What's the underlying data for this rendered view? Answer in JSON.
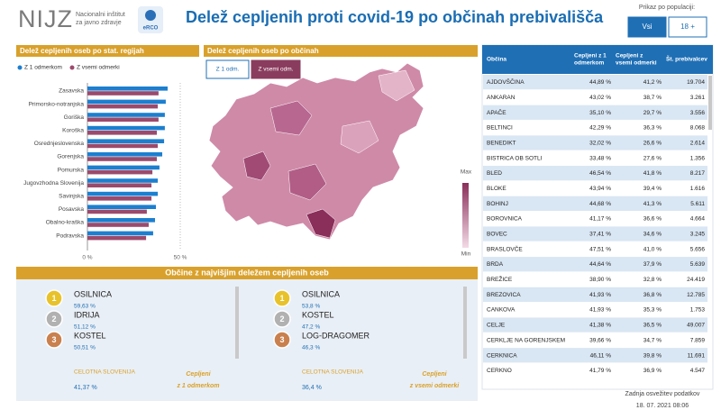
{
  "header": {
    "logo": "NIJZ",
    "logo_text": [
      "Nacionalni inštitut",
      "za javno zdravje"
    ],
    "badge": "eRCO",
    "title": "Delež cepljenih proti covid-19 po občinah prebivališča",
    "filter_label": "Prikaz po populaciji:",
    "buttons": [
      "Vsi",
      "18 +"
    ]
  },
  "chart_data": {
    "type": "hbar",
    "title": "Delež cepljenih oseb po stat. regijah",
    "categories": [
      "Zasavska",
      "Primorsko-notranjska",
      "Goriška",
      "Koroška",
      "Osrednjeslovenska",
      "Gorenjska",
      "Pomurska",
      "Jugovzhodna Slovenija",
      "Savinjska",
      "Posavska",
      "Obalno-kraška",
      "Podravska"
    ],
    "series": [
      {
        "name": "Z 1 odmerkom",
        "color": "#1c7fd0",
        "values": [
          43.2,
          42.2,
          41.7,
          41.7,
          41.3,
          40.3,
          38.8,
          37.9,
          37.9,
          36.9,
          36.4,
          35.4
        ]
      },
      {
        "name": "Z vsemi odmerki",
        "color": "#9b4a6c",
        "values": [
          38.3,
          37.9,
          38.3,
          37.4,
          37.9,
          37.4,
          35.0,
          34.5,
          34.5,
          32.0,
          33.0,
          31.6
        ]
      }
    ],
    "xlim": [
      0,
      55
    ],
    "xticks": [
      {
        "value": 0,
        "label": "0 %"
      },
      {
        "value": 50,
        "label": "50 %"
      }
    ],
    "legend": "top-left"
  },
  "map": {
    "title": "Delež cepljenih oseb po občinah",
    "toggles": [
      "Z 1 odm.",
      "Z vsemi odm."
    ],
    "legend": [
      "Max",
      "Min"
    ]
  },
  "top": {
    "title": "Občine z najvišjim deležem cepljenih oseb",
    "columns": [
      {
        "ranks": [
          {
            "rank": "1",
            "name": "OSILNICA",
            "value": "59,63 %"
          },
          {
            "rank": "2",
            "name": "IDRIJA",
            "value": "51,12 %"
          },
          {
            "rank": "3",
            "name": "KOSTEL",
            "value": "50,51 %"
          }
        ],
        "total_label": "CELOTNA SLOVENIJA",
        "total": "41,37 %",
        "caption": [
          "Cepljeni",
          "z 1 odmerkom"
        ]
      },
      {
        "ranks": [
          {
            "rank": "1",
            "name": "OSILNICA",
            "value": "53,8 %"
          },
          {
            "rank": "2",
            "name": "KOSTEL",
            "value": "47,2 %"
          },
          {
            "rank": "3",
            "name": "LOG-DRAGOMER",
            "value": "46,3 %"
          }
        ],
        "total_label": "CELOTNA SLOVENIJA",
        "total": "36,4 %",
        "caption": [
          "Cepljeni",
          "z vsemi odmerki"
        ]
      }
    ]
  },
  "table": {
    "header": [
      [
        "Občina"
      ],
      [
        "Cepljeni z 1",
        "odmerkom"
      ],
      [
        "Cepljeni z",
        "vsemi odmerki"
      ],
      [
        "Št. prebivalcev"
      ]
    ],
    "rows": [
      [
        "AJDOVŠČINA",
        "44,89 %",
        "41,2 %",
        "19.704"
      ],
      [
        "ANKARAN",
        "43,02 %",
        "38,7 %",
        "3.261"
      ],
      [
        "APAČE",
        "35,10 %",
        "29,7 %",
        "3.556"
      ],
      [
        "BELTINCI",
        "42,29 %",
        "36,3 %",
        "8.068"
      ],
      [
        "BENEDIKT",
        "32,02 %",
        "26,6 %",
        "2.614"
      ],
      [
        "BISTRICA OB SOTLI",
        "33,48 %",
        "27,6 %",
        "1.356"
      ],
      [
        "BLED",
        "46,54 %",
        "41,8 %",
        "8.217"
      ],
      [
        "BLOKE",
        "43,94 %",
        "39,4 %",
        "1.616"
      ],
      [
        "BOHINJ",
        "44,68 %",
        "41,3 %",
        "5.611"
      ],
      [
        "BOROVNICA",
        "41,17 %",
        "36,6 %",
        "4.664"
      ],
      [
        "BOVEC",
        "37,41 %",
        "34,6 %",
        "3.245"
      ],
      [
        "BRASLOVČE",
        "47,51 %",
        "41,0 %",
        "5.656"
      ],
      [
        "BRDA",
        "44,64 %",
        "37,9 %",
        "5.639"
      ],
      [
        "BREŽICE",
        "38,90 %",
        "32,8 %",
        "24.419"
      ],
      [
        "BREZOVICA",
        "41,93 %",
        "36,8 %",
        "12.785"
      ],
      [
        "CANKOVA",
        "41,93 %",
        "35,3 %",
        "1.753"
      ],
      [
        "CELJE",
        "41,38 %",
        "36,5 %",
        "49.007"
      ],
      [
        "CERKLJE NA GORENJSKEM",
        "39,66 %",
        "34,7 %",
        "7.859"
      ],
      [
        "CERKNICA",
        "46,11 %",
        "39,8 %",
        "11.691"
      ],
      [
        "CERKNO",
        "41,79 %",
        "36,9 %",
        "4.547"
      ]
    ]
  },
  "footer": [
    "Zadnja osvežitev podatkov",
    "18. 07. 2021 08:06"
  ]
}
